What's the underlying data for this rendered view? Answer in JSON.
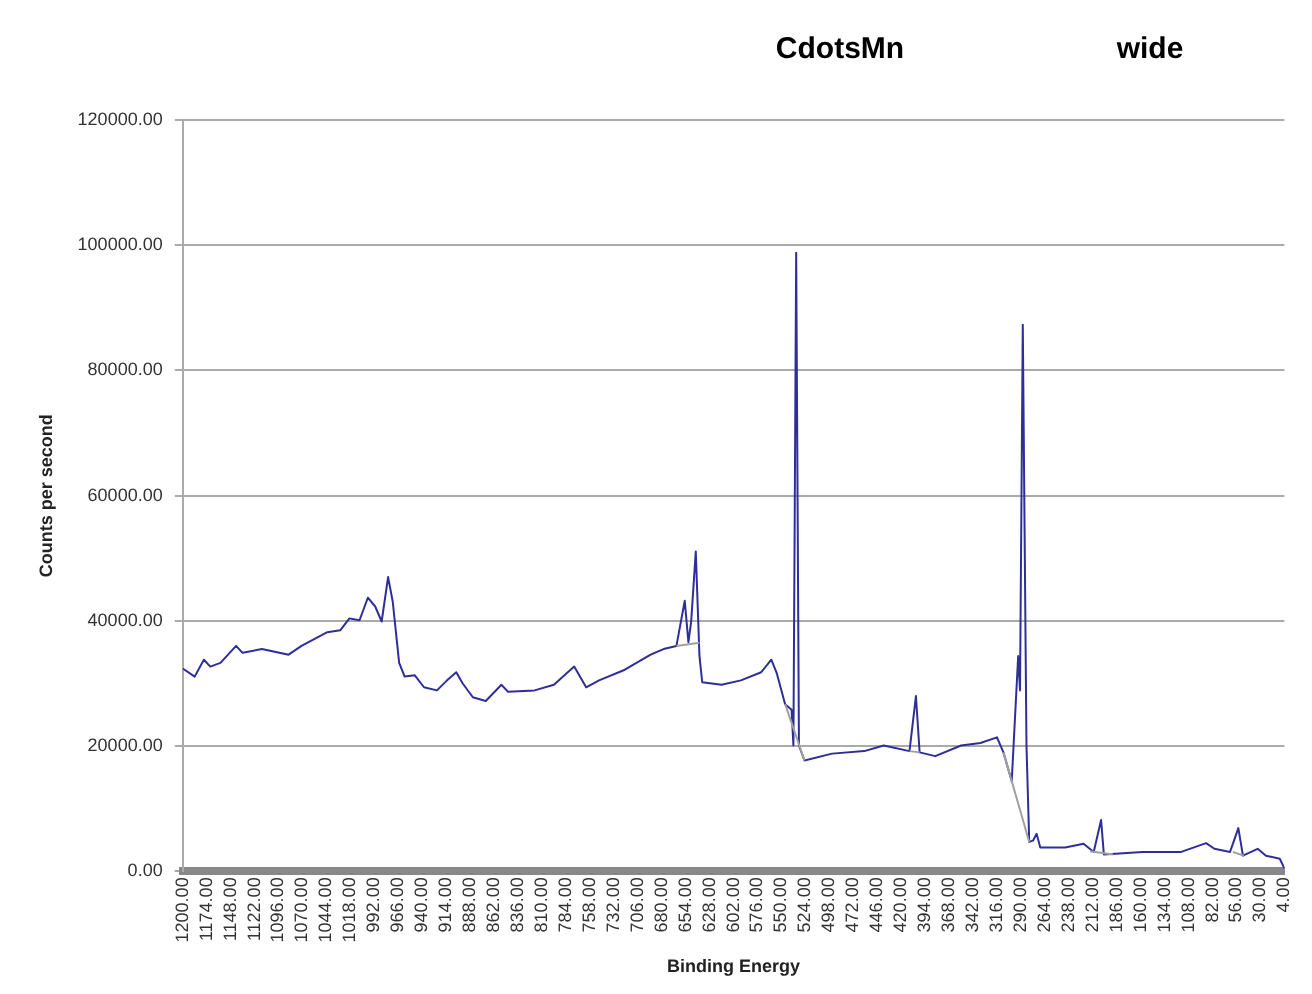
{
  "chart_data": {
    "type": "line",
    "title": "CdotsMn",
    "annotations": [
      "wide"
    ],
    "xlabel": "Binding Energy",
    "ylabel": "Counts per second",
    "xlim": [
      1200,
      4
    ],
    "ylim": [
      0,
      120000
    ],
    "yticks": [
      {
        "value": 0,
        "label": "0.00"
      },
      {
        "value": 20000,
        "label": "20000.00"
      },
      {
        "value": 40000,
        "label": "40000.00"
      },
      {
        "value": 60000,
        "label": "60000.00"
      },
      {
        "value": 80000,
        "label": "80000.00"
      },
      {
        "value": 100000,
        "label": "100000.00"
      },
      {
        "value": 120000,
        "label": "120000.00"
      }
    ],
    "xticks": [
      {
        "value": 1200,
        "label": "1200.00"
      },
      {
        "value": 1174,
        "label": "1174.00"
      },
      {
        "value": 1148,
        "label": "1148.00"
      },
      {
        "value": 1122,
        "label": "1122.00"
      },
      {
        "value": 1096,
        "label": "1096.00"
      },
      {
        "value": 1070,
        "label": "1070.00"
      },
      {
        "value": 1044,
        "label": "1044.00"
      },
      {
        "value": 1018,
        "label": "1018.00"
      },
      {
        "value": 992,
        "label": "992.00"
      },
      {
        "value": 966,
        "label": "966.00"
      },
      {
        "value": 940,
        "label": "940.00"
      },
      {
        "value": 914,
        "label": "914.00"
      },
      {
        "value": 888,
        "label": "888.00"
      },
      {
        "value": 862,
        "label": "862.00"
      },
      {
        "value": 836,
        "label": "836.00"
      },
      {
        "value": 810,
        "label": "810.00"
      },
      {
        "value": 784,
        "label": "784.00"
      },
      {
        "value": 758,
        "label": "758.00"
      },
      {
        "value": 732,
        "label": "732.00"
      },
      {
        "value": 706,
        "label": "706.00"
      },
      {
        "value": 680,
        "label": "680.00"
      },
      {
        "value": 654,
        "label": "654.00"
      },
      {
        "value": 628,
        "label": "628.00"
      },
      {
        "value": 602,
        "label": "602.00"
      },
      {
        "value": 576,
        "label": "576.00"
      },
      {
        "value": 550,
        "label": "550.00"
      },
      {
        "value": 524,
        "label": "524.00"
      },
      {
        "value": 498,
        "label": "498.00"
      },
      {
        "value": 472,
        "label": "472.00"
      },
      {
        "value": 446,
        "label": "446.00"
      },
      {
        "value": 420,
        "label": "420.00"
      },
      {
        "value": 394,
        "label": "394.00"
      },
      {
        "value": 368,
        "label": "368.00"
      },
      {
        "value": 342,
        "label": "342.00"
      },
      {
        "value": 316,
        "label": "316.00"
      },
      {
        "value": 290,
        "label": "290.00"
      },
      {
        "value": 264,
        "label": "264.00"
      },
      {
        "value": 238,
        "label": "238.00"
      },
      {
        "value": 212,
        "label": "212.00"
      },
      {
        "value": 186,
        "label": "186.00"
      },
      {
        "value": 160,
        "label": "160.00"
      },
      {
        "value": 134,
        "label": "134.00"
      },
      {
        "value": 108,
        "label": "108.00"
      },
      {
        "value": 82,
        "label": "82.00"
      },
      {
        "value": 56,
        "label": "56.00"
      },
      {
        "value": 30,
        "label": "30.00"
      },
      {
        "value": 4,
        "label": "4.00"
      }
    ],
    "grid": "y",
    "legend": false,
    "marker": "none",
    "line_style": "solid",
    "series": [
      {
        "color": "#a0a0a0",
        "x": [
          664,
          639,
          null,
          546,
          525,
          null,
          411,
          400,
          null,
          309,
          281,
          null,
          215,
          190,
          null,
          60,
          48
        ],
        "values": [
          36000,
          36500,
          null,
          26700,
          17700,
          null,
          19200,
          19000,
          null,
          19000,
          4700,
          null,
          3200,
          2700,
          null,
          3100,
          2500
        ]
      },
      {
        "color": "#2e2e9a",
        "x": [
          1200,
          1187,
          1177,
          1170,
          1159,
          1142,
          1135,
          1114,
          1085,
          1071,
          1043,
          1029,
          1019,
          1008,
          999,
          991,
          984,
          977,
          972,
          965,
          959,
          948,
          938,
          924,
          913,
          903,
          896,
          885,
          871,
          854,
          847,
          818,
          797,
          775,
          762,
          748,
          720,
          692,
          678,
          664,
          655,
          651,
          648,
          643,
          639,
          636,
          615,
          594,
          572,
          561,
          555,
          546,
          539,
          537,
          534,
          531,
          525,
          495,
          460,
          439,
          411,
          404,
          400,
          383,
          355,
          334,
          316,
          309,
          300,
          293,
          291,
          288,
          284,
          281,
          277,
          273,
          269,
          242,
          222,
          211,
          203,
          200,
          158,
          116,
          89,
          80,
          63,
          54,
          49,
          33,
          24,
          9,
          4
        ],
        "values": [
          32400,
          31100,
          33800,
          32700,
          33300,
          36000,
          34900,
          35500,
          34600,
          36000,
          38200,
          38500,
          40400,
          40100,
          43700,
          42300,
          39900,
          47000,
          43100,
          33300,
          31100,
          31300,
          29400,
          28900,
          30500,
          31800,
          30000,
          27800,
          27200,
          29800,
          28700,
          28900,
          29800,
          32700,
          29400,
          30500,
          32200,
          34600,
          35500,
          36000,
          43200,
          36600,
          39900,
          51100,
          34400,
          30200,
          29800,
          30500,
          31800,
          33800,
          31600,
          26700,
          25800,
          20100,
          98800,
          20100,
          17700,
          18800,
          19200,
          20100,
          19200,
          28000,
          19000,
          18400,
          20100,
          20500,
          21400,
          19000,
          14400,
          34400,
          28900,
          87300,
          20100,
          4700,
          4900,
          6000,
          3800,
          3800,
          4400,
          3100,
          8200,
          2700,
          3100,
          3100,
          4500,
          3600,
          3100,
          6900,
          2500,
          3600,
          2500,
          2000,
          500
        ]
      }
    ]
  }
}
